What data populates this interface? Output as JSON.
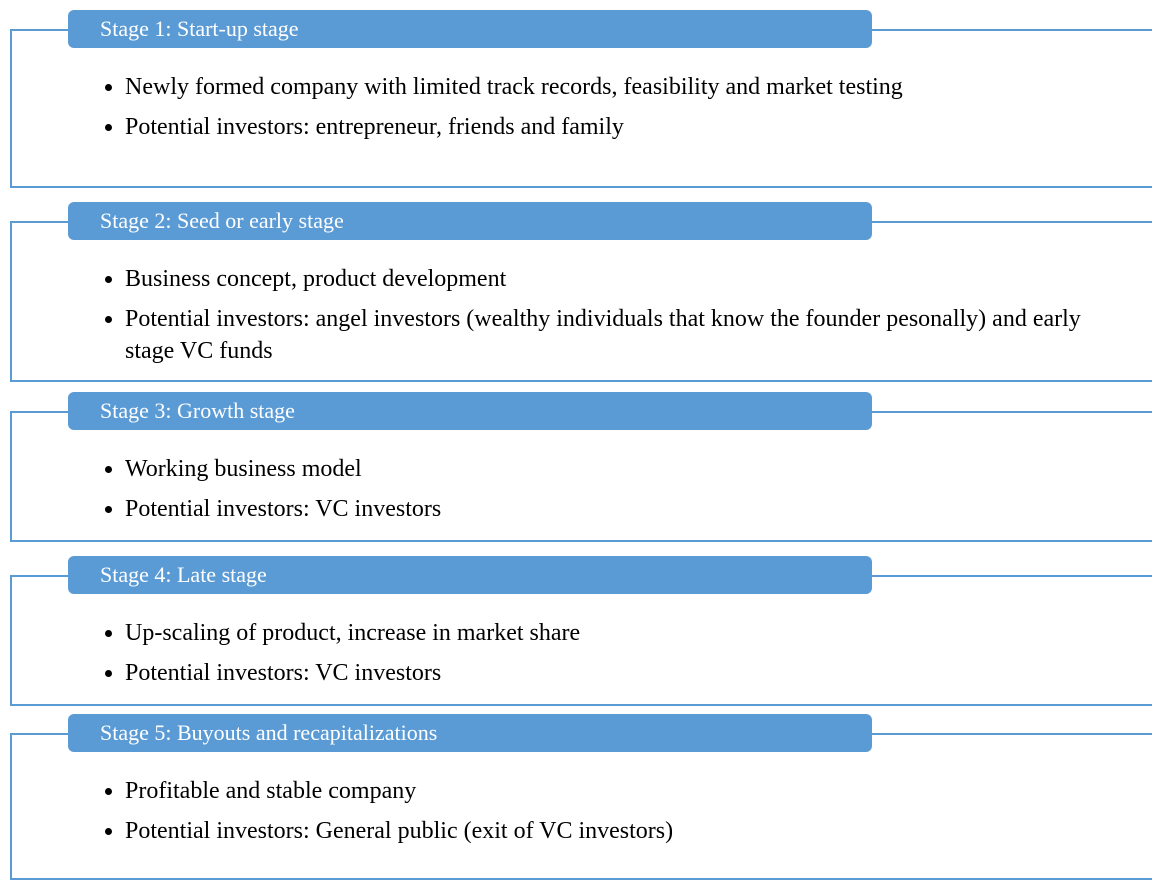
{
  "stages": [
    {
      "title": "Stage 1: Start-up stage",
      "bullets": [
        "Newly formed company with limited track records, feasibility and market testing",
        "Potential investors: entrepreneur, friends and family"
      ]
    },
    {
      "title": "Stage 2: Seed or early stage",
      "bullets": [
        "Business concept, product development",
        "Potential investors: angel investors (wealthy individuals that know the founder pesonally) and early stage VC funds"
      ]
    },
    {
      "title": "Stage 3: Growth stage",
      "bullets": [
        "Working business model",
        "Potential investors: VC investors"
      ]
    },
    {
      "title": "Stage 4: Late stage",
      "bullets": [
        "Up-scaling of product, increase in market share",
        "Potential investors: VC investors"
      ]
    },
    {
      "title": "Stage 5: Buyouts and recapitalizations",
      "bullets": [
        "Profitable and stable company",
        "Potential investors: General public (exit of VC investors)"
      ]
    }
  ]
}
